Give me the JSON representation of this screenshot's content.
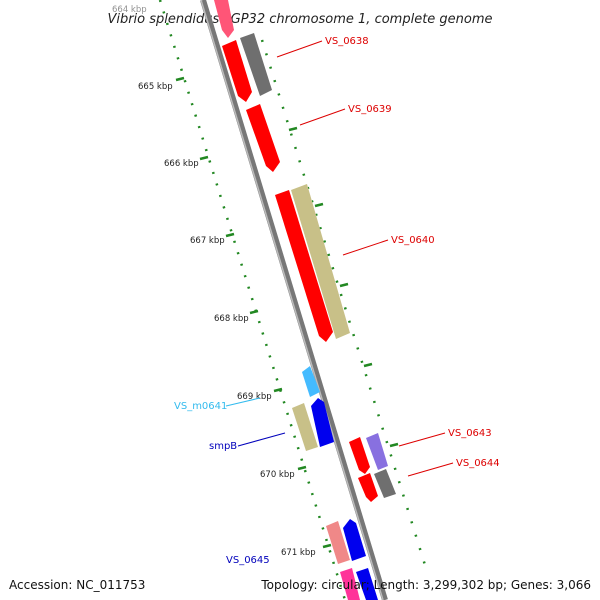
{
  "title": "Vibrio splendidus LGP32 chromosome 1, complete genome",
  "footer": {
    "accession": "Accession: NC_011753",
    "summary": "Topology: circular; Length: 3,299,302 bp; Genes: 3,066"
  },
  "colors": {
    "red": "#ff0000",
    "gray": "#6f6f6f",
    "khaki": "#c8c088",
    "blue": "#0000ee",
    "cyan": "#44bbff",
    "purple": "#8870e0",
    "pink": "#f08888",
    "magenta": "#ff3399",
    "tick": "#228822",
    "backbone": "#888888"
  },
  "scale_labels": [
    "664 kbp",
    "665 kbp",
    "666 kbp",
    "667 kbp",
    "668 kbp",
    "669 kbp",
    "670 kbp",
    "671 kbp"
  ],
  "gene_labels": [
    {
      "text": "VS_0638",
      "color": "#dd0000"
    },
    {
      "text": "VS_0639",
      "color": "#dd0000"
    },
    {
      "text": "VS_0640",
      "color": "#dd0000"
    },
    {
      "text": "VS_m0641",
      "color": "#33bbee"
    },
    {
      "text": "smpB",
      "color": "#0000bb"
    },
    {
      "text": "VS_0643",
      "color": "#dd0000"
    },
    {
      "text": "VS_0644",
      "color": "#dd0000"
    },
    {
      "text": "VS_0645",
      "color": "#0000bb"
    }
  ]
}
